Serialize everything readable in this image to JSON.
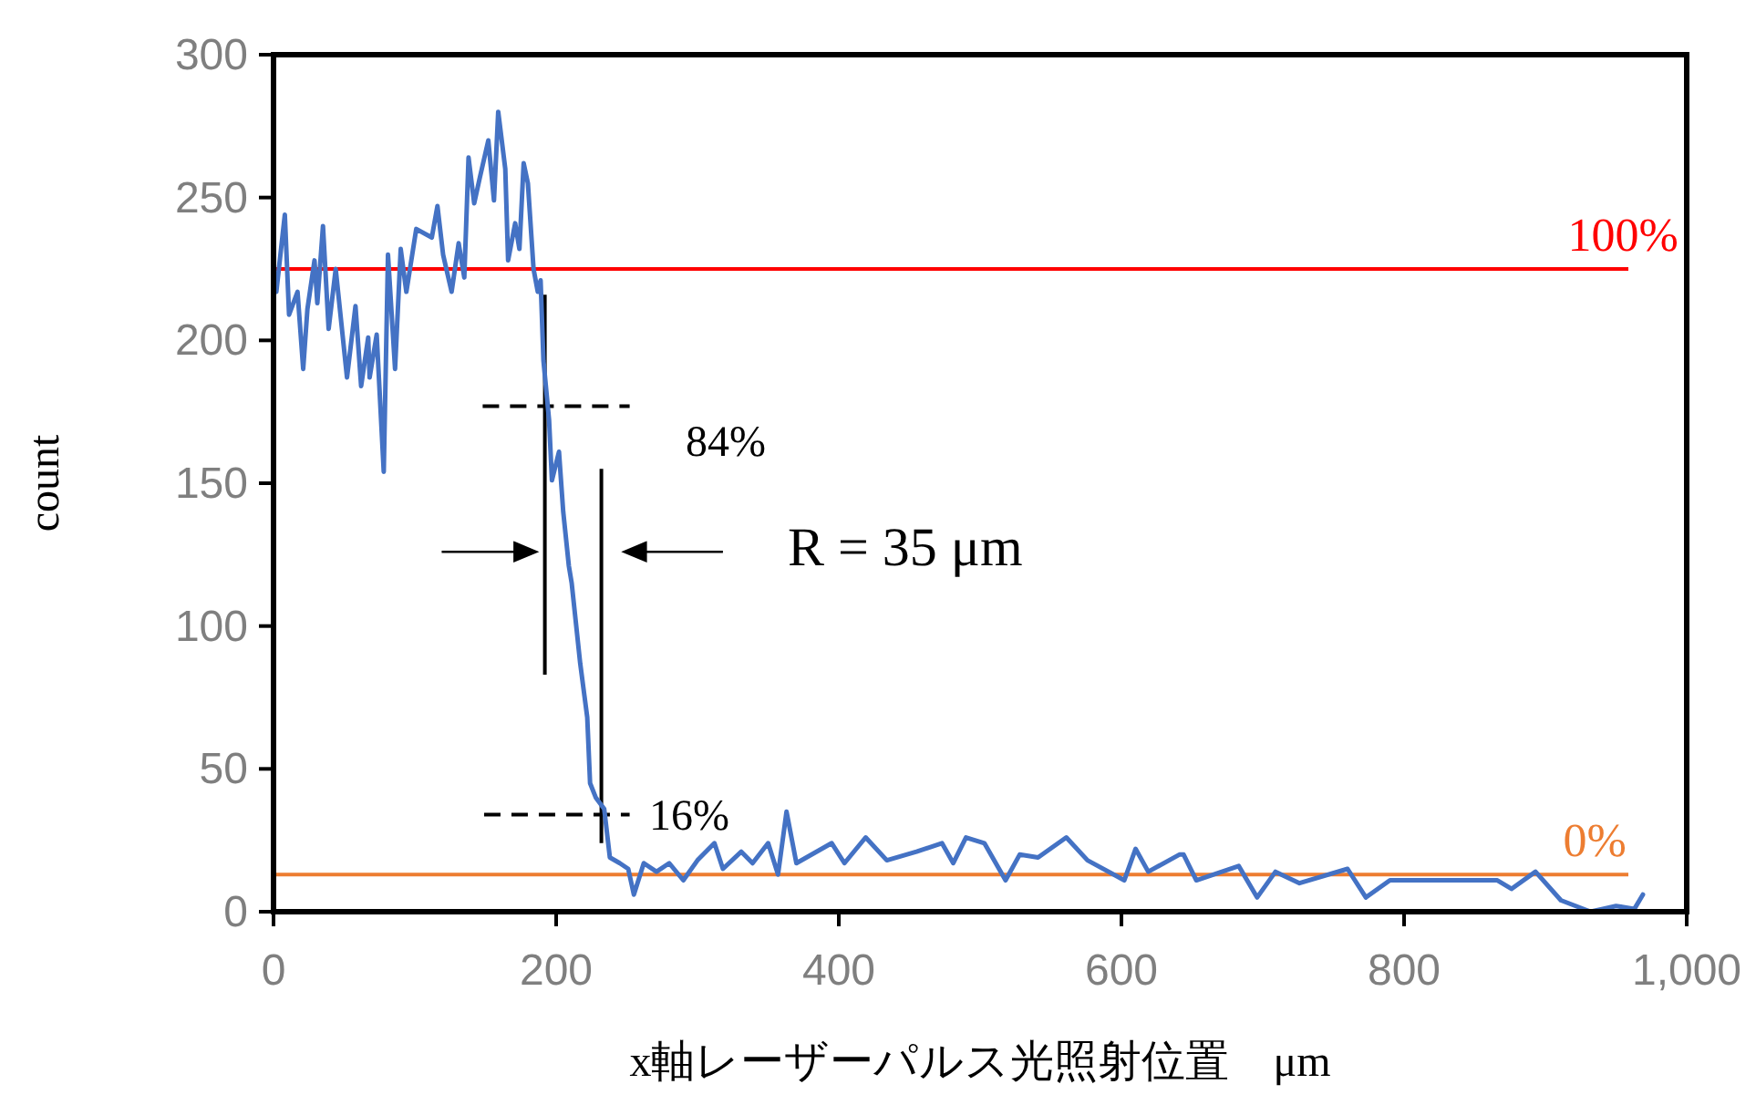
{
  "chart_data": {
    "type": "line",
    "xlabel": "x軸レーザーパルス光照射位置　μm",
    "ylabel": "count",
    "xlim": [
      0,
      1000
    ],
    "xticks": [
      0,
      200,
      400,
      600,
      800,
      {
        "value": 1000,
        "label": "1,000"
      }
    ],
    "ylim": [
      0,
      300
    ],
    "yticks": [
      0,
      50,
      100,
      150,
      200,
      250,
      300
    ],
    "grid": false,
    "marker": "none",
    "line_style": "solid",
    "series": [
      {
        "color": "#4472c4",
        "x": [
          0,
          2,
          8,
          11,
          17,
          21,
          24,
          29,
          31,
          35,
          39,
          44,
          52,
          58,
          62,
          67,
          68,
          73,
          78,
          81,
          86,
          90,
          94,
          101,
          112,
          116,
          120,
          126,
          131,
          135,
          138,
          142,
          146,
          152,
          156,
          159,
          164,
          166,
          171,
          174,
          177,
          180,
          184,
          187,
          189,
          191,
          195,
          197,
          202,
          205,
          209,
          211,
          217,
          222,
          224,
          228,
          234,
          238,
          245,
          251,
          255,
          262,
          271,
          280,
          290,
          300,
          312,
          318,
          331,
          339,
          350,
          357,
          363,
          370,
          395,
          404,
          419,
          434,
          455,
          473,
          481,
          490,
          503,
          518,
          528,
          541,
          561,
          576,
          602,
          610,
          619,
          641,
          644,
          653,
          683,
          696,
          709,
          726,
          760,
          773,
          790,
          821,
          847,
          866,
          876,
          893,
          911,
          932,
          950,
          963,
          969
        ],
        "values": [
          219,
          217,
          244,
          209,
          217,
          190,
          211,
          228,
          213,
          240,
          204,
          225,
          187,
          212,
          184,
          201,
          187,
          202,
          154,
          230,
          190,
          232,
          217,
          239,
          236,
          247,
          230,
          217,
          234,
          222,
          264,
          248,
          257,
          270,
          249,
          280,
          260,
          228,
          241,
          232,
          262,
          255,
          225,
          217,
          221,
          193,
          172,
          151,
          161,
          140,
          121,
          115,
          87,
          68,
          45,
          40,
          36,
          19,
          17,
          15,
          6,
          17,
          14,
          17,
          11,
          18,
          24,
          15,
          21,
          17,
          24,
          13,
          35,
          17,
          24,
          17,
          26,
          18,
          21,
          24,
          17,
          26,
          24,
          11,
          20,
          19,
          26,
          18,
          11,
          22,
          14,
          20,
          20,
          11,
          16,
          5,
          14,
          10,
          15,
          5,
          11,
          11,
          11,
          11,
          8,
          14,
          4,
          0,
          2,
          1,
          6
        ]
      }
    ],
    "ref_lines": [
      {
        "axis": "y",
        "value": 225,
        "color": "#ff0000",
        "line_style": "solid"
      },
      {
        "axis": "y",
        "value": 13,
        "color": "#ed7d31",
        "line_style": "solid"
      }
    ],
    "annotations": [
      "84%",
      "16%",
      "R = 35 μm",
      {
        "text": "100%",
        "x": 955,
        "y": 225
      },
      {
        "text": "0%",
        "x": 935,
        "y": 13
      }
    ]
  }
}
